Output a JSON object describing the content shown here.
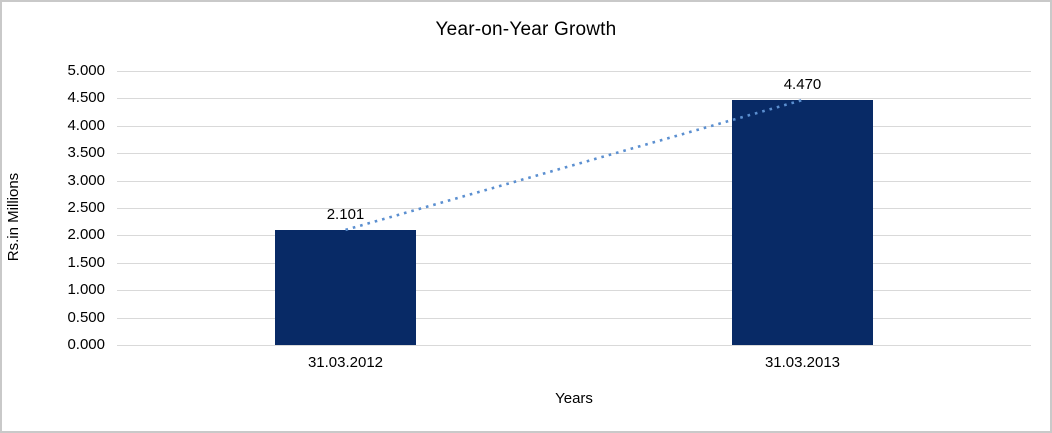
{
  "chart_data": {
    "type": "bar",
    "title": "Year-on-Year Growth",
    "categories": [
      "31.03.2012",
      "31.03.2013"
    ],
    "values": [
      2.101,
      4.47
    ],
    "data_labels": [
      "2.101",
      "4.470"
    ],
    "xlabel": "Years",
    "ylabel": "Rs.in Millions",
    "ylim": [
      0,
      5
    ],
    "ytick_step": 0.5,
    "ytick_labels": [
      "5.000",
      "4.500",
      "4.000",
      "3.500",
      "3.000",
      "2.500",
      "2.000",
      "1.500",
      "1.000",
      "0.500",
      "0.000"
    ],
    "grid": true,
    "legend_position": "none",
    "trendline": {
      "style": "dotted",
      "connects": [
        "31.03.2012",
        "31.03.2013"
      ]
    },
    "colors": {
      "bar": "#082a66",
      "trendline": "#5b8fd0",
      "gridline": "#d9d9d9",
      "text": "#000000",
      "background": "#ffffff",
      "frame_border": "#c9c9c9"
    }
  }
}
